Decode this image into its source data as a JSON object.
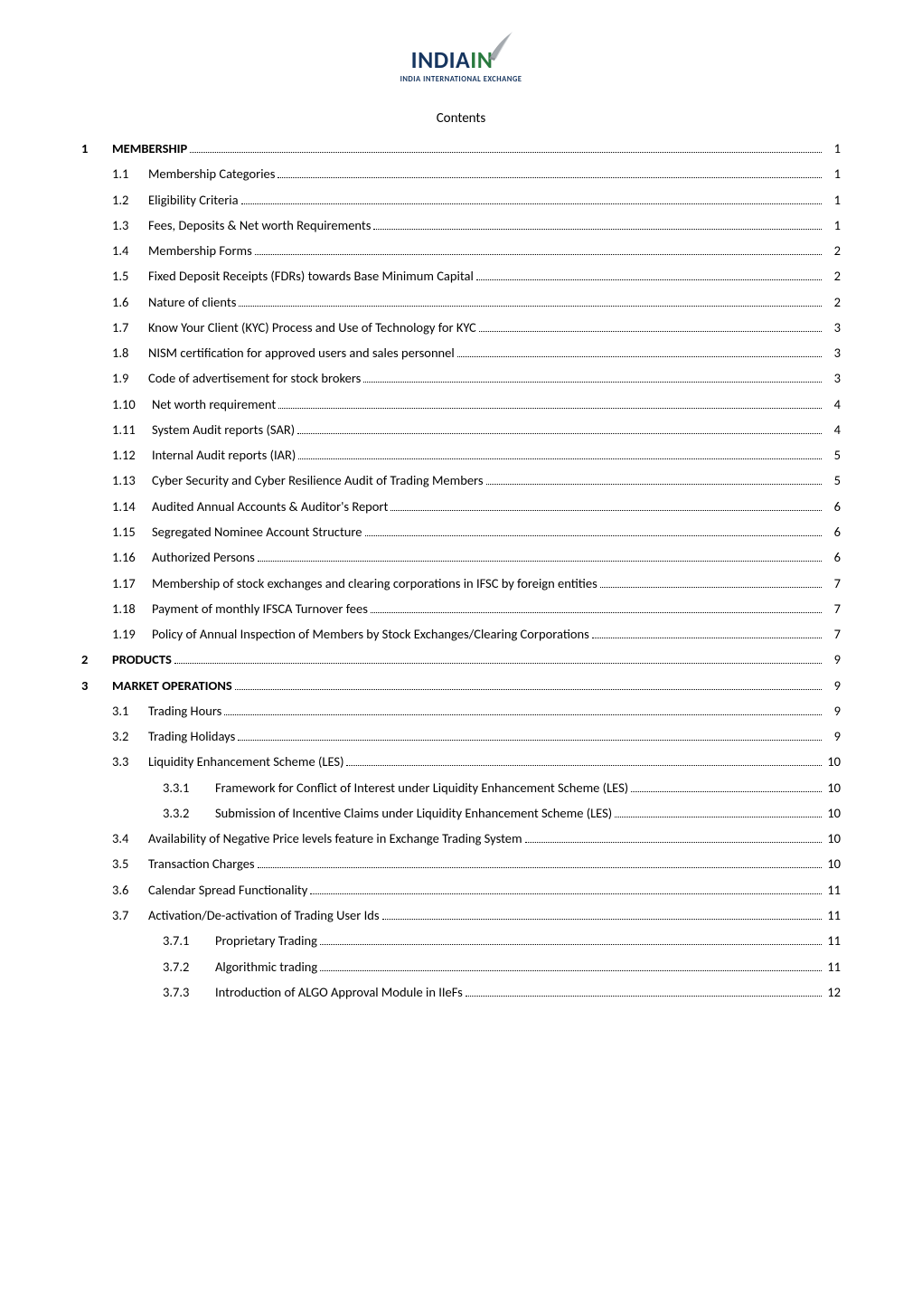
{
  "logo": {
    "text_india": "INDIA",
    "text_in": "IN",
    "tagline": "INDIA INTERNATIONAL EXCHANGE",
    "color_india": "#16355f",
    "color_in": "#2a7a3f",
    "swoosh_color": "#8a8f94"
  },
  "heading": "Contents",
  "text_color": "#000000",
  "background_color": "#ffffff",
  "font_family": "Calibri",
  "base_font_size_pt": 11,
  "toc": [
    {
      "level": 0,
      "num": "1",
      "title": "MEMBERSHIP",
      "page": "1",
      "bold": true
    },
    {
      "level": 1,
      "num": "1.1",
      "title": "Membership Categories",
      "page": "1"
    },
    {
      "level": 1,
      "num": "1.2",
      "title": "Eligibility Criteria",
      "page": "1"
    },
    {
      "level": 1,
      "num": "1.3",
      "title": "Fees, Deposits & Net worth Requirements",
      "page": "1"
    },
    {
      "level": 1,
      "num": "1.4",
      "title": "Membership Forms",
      "page": "2"
    },
    {
      "level": 1,
      "num": "1.5",
      "title": "Fixed Deposit Receipts (FDRs) towards Base Minimum Capital",
      "page": "2"
    },
    {
      "level": 1,
      "num": "1.6",
      "title": "Nature of clients",
      "page": "2"
    },
    {
      "level": 1,
      "num": "1.7",
      "title": "Know Your Client (KYC) Process and Use of Technology for KYC",
      "page": "3"
    },
    {
      "level": 1,
      "num": "1.8",
      "title": "NISM certification for approved users and sales personnel",
      "page": "3"
    },
    {
      "level": 1,
      "num": "1.9",
      "title": "Code of advertisement for stock brokers",
      "page": "3"
    },
    {
      "level": 1,
      "num": "1.10",
      "title": "Net worth requirement",
      "page": "4",
      "wide": true
    },
    {
      "level": 1,
      "num": "1.11",
      "title": "System Audit reports (SAR)",
      "page": "4",
      "wide": true
    },
    {
      "level": 1,
      "num": "1.12",
      "title": "Internal Audit reports (IAR)",
      "page": "5",
      "wide": true
    },
    {
      "level": 1,
      "num": "1.13",
      "title": "Cyber Security and Cyber Resilience Audit of Trading Members",
      "page": "5",
      "wide": true
    },
    {
      "level": 1,
      "num": "1.14",
      "title": "Audited Annual Accounts & Auditor's Report",
      "page": "6",
      "wide": true
    },
    {
      "level": 1,
      "num": "1.15",
      "title": "Segregated Nominee Account Structure",
      "page": "6",
      "wide": true
    },
    {
      "level": 1,
      "num": "1.16",
      "title": "Authorized Persons",
      "page": "6",
      "wide": true
    },
    {
      "level": 1,
      "num": "1.17",
      "title": "Membership of stock exchanges and clearing corporations in IFSC by foreign entities",
      "page": "7",
      "wide": true
    },
    {
      "level": 1,
      "num": "1.18",
      "title": "Payment of monthly IFSCA Turnover fees",
      "page": "7",
      "wide": true
    },
    {
      "level": 1,
      "num": "1.19",
      "title": "Policy of Annual Inspection of Members by Stock Exchanges/Clearing Corporations",
      "page": "7",
      "wide": true
    },
    {
      "level": 0,
      "num": "2",
      "title": "PRODUCTS",
      "page": "9",
      "bold": true
    },
    {
      "level": 0,
      "num": "3",
      "title": "MARKET OPERATIONS",
      "page": "9",
      "bold": true
    },
    {
      "level": 1,
      "num": "3.1",
      "title": "Trading Hours",
      "page": "9"
    },
    {
      "level": 1,
      "num": "3.2",
      "title": "Trading Holidays",
      "page": "9"
    },
    {
      "level": 1,
      "num": "3.3",
      "title": "Liquidity Enhancement Scheme (LES)",
      "page": "10"
    },
    {
      "level": 2,
      "num": "3.3.1",
      "title": "Framework for Conflict of Interest under Liquidity Enhancement Scheme (LES)",
      "page": "10"
    },
    {
      "level": 2,
      "num": "3.3.2",
      "title": "Submission of Incentive Claims under Liquidity Enhancement Scheme (LES)",
      "page": "10"
    },
    {
      "level": 1,
      "num": "3.4",
      "title": "Availability of Negative Price levels feature in Exchange Trading System",
      "page": "10"
    },
    {
      "level": 1,
      "num": "3.5",
      "title": "Transaction Charges",
      "page": "10"
    },
    {
      "level": 1,
      "num": "3.6",
      "title": "Calendar Spread Functionality",
      "page": "11"
    },
    {
      "level": 1,
      "num": "3.7",
      "title": "Activation/De-activation of Trading User Ids",
      "page": "11"
    },
    {
      "level": 2,
      "num": "3.7.1",
      "title": "Proprietary Trading",
      "page": "11"
    },
    {
      "level": 2,
      "num": "3.7.2",
      "title": "Algorithmic trading",
      "page": "11"
    },
    {
      "level": 2,
      "num": "3.7.3",
      "title": "Introduction of ALGO Approval Module in IIeFs",
      "page": "12"
    }
  ]
}
